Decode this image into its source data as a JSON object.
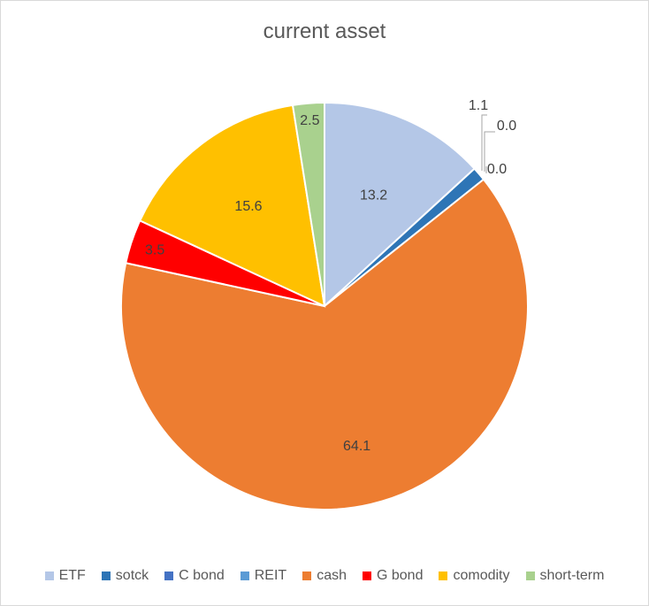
{
  "chart_data": {
    "type": "pie",
    "title": "current asset",
    "legend_position": "bottom",
    "categories": [
      "ETF",
      "sotck",
      "C bond",
      "REIT",
      "cash",
      "G bond",
      "comodity",
      "short-term"
    ],
    "values": [
      13.2,
      1.1,
      0.0,
      0.0,
      64.1,
      3.5,
      15.6,
      2.5
    ],
    "labels": [
      "13.2",
      "1.1",
      "0.0",
      "0.0",
      "64.1",
      "3.5",
      "15.6",
      "2.5"
    ],
    "colors": [
      "#b4c7e7",
      "#2e75b6",
      "#4472c4",
      "#5b9bd5",
      "#ed7d31",
      "#ff0000",
      "#ffc000",
      "#a9d18e"
    ]
  }
}
